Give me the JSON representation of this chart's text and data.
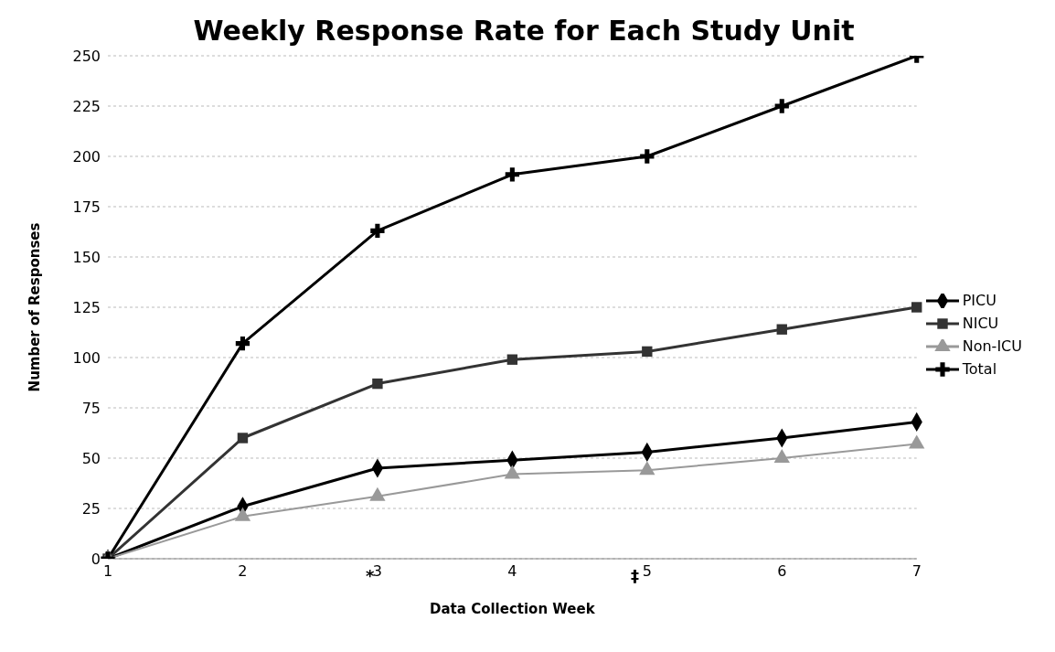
{
  "chart_data": {
    "type": "line",
    "title": "Weekly Response Rate for Each Study Unit",
    "xlabel": "Data Collection Week",
    "ylabel": "Number of Responses",
    "categories": [
      "1",
      "2",
      "3",
      "4",
      "5",
      "6",
      "7"
    ],
    "series": [
      {
        "name": "PICU",
        "color": "#000000",
        "marker": "diamond",
        "values": [
          0,
          26,
          45,
          49,
          53,
          60,
          68
        ]
      },
      {
        "name": "NICU",
        "color": "#333333",
        "marker": "square",
        "values": [
          0,
          60,
          87,
          99,
          103,
          114,
          125
        ]
      },
      {
        "name": "Non-ICU",
        "color": "#999999",
        "marker": "triangle",
        "values": [
          0,
          21,
          31,
          42,
          44,
          50,
          57
        ]
      },
      {
        "name": "Total",
        "color": "#000000",
        "marker": "cross",
        "values": [
          0,
          107,
          163,
          191,
          200,
          225,
          250
        ]
      }
    ],
    "ylim": [
      0,
      250
    ],
    "yticks": [
      0,
      25,
      50,
      75,
      100,
      125,
      150,
      175,
      200,
      225,
      250
    ],
    "grid": "y",
    "legend": "right",
    "annotations": [
      "*",
      "‡"
    ]
  }
}
